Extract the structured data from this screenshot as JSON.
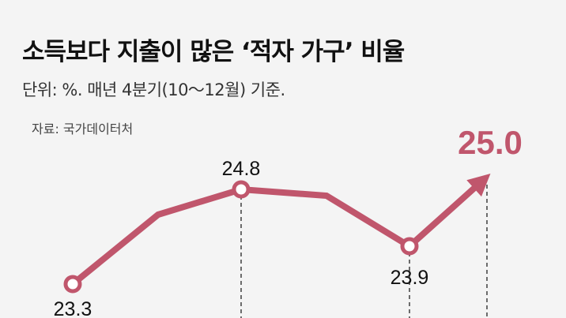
{
  "title": "소득보다 지출이 많은 ‘적자 가구’ 비율",
  "subtitle": "단위: %. 매년 4분기(10～12월) 기준.",
  "source": "자료: 국가데이터처",
  "colors": {
    "line": "#c0566c",
    "background": "#f4f4f4",
    "highlight_label": "#c0566c"
  },
  "chart_data": {
    "type": "line",
    "title": "소득보다 지출이 많은 ‘적자 가구’ 비율",
    "ylabel": "%",
    "values": [
      23.3,
      24.4,
      24.8,
      24.7,
      23.9,
      25.0
    ],
    "labels": [
      "23.3",
      "",
      "24.8",
      "",
      "23.9",
      "25.0"
    ],
    "marked_points": [
      0,
      2,
      4
    ],
    "last_point_arrow": true,
    "grid": false
  }
}
